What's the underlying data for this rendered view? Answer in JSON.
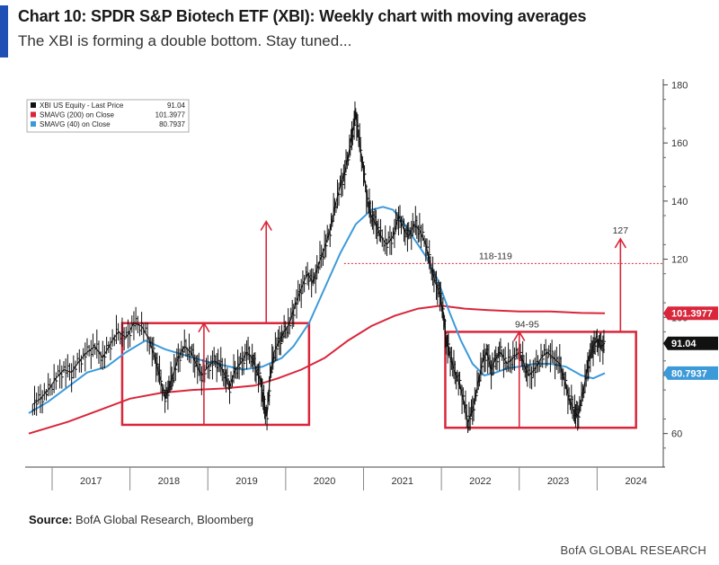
{
  "header": {
    "title": "Chart 10: SPDR S&P Biotech ETF (XBI): Weekly chart with moving averages",
    "subtitle": "The XBI is forming a double bottom. Stay tuned..."
  },
  "footer": {
    "source_label": "Source:",
    "source_text": " BofA Global Research, Bloomberg",
    "brand": "BofA GLOBAL RESEARCH"
  },
  "chart_data": {
    "type": "line",
    "xlabel": "",
    "ylabel": "",
    "x_ticks": [
      "2017",
      "2018",
      "2019",
      "2020",
      "2021",
      "2022",
      "2023",
      "2024"
    ],
    "x_range": [
      2016.7,
      2024.85
    ],
    "y_ticks": [
      60,
      80,
      100,
      120,
      140,
      160,
      180
    ],
    "ylim": [
      50,
      182
    ],
    "grid": false,
    "legend": {
      "placement": "top-left",
      "entries": [
        {
          "label": "XBI US Equity - Last Price",
          "value": "91.04",
          "color": "#111111"
        },
        {
          "label": "SMAVG (200)  on Close",
          "value": "101.3977",
          "color": "#d9263a"
        },
        {
          "label": "SMAVG (40)  on Close",
          "value": "80.7937",
          "color": "#3d9ad9"
        }
      ]
    },
    "last_value_labels": [
      {
        "text": "101.3977",
        "value": 101.3977,
        "color": "#d9263a"
      },
      {
        "text": "91.04",
        "value": 91.04,
        "color": "#111111"
      },
      {
        "text": "80.7937",
        "value": 80.7937,
        "color": "#3d9ad9"
      }
    ],
    "series": [
      {
        "name": "XBI US Equity - Last Price",
        "color": "#111111",
        "points": [
          [
            2016.75,
            70
          ],
          [
            2016.85,
            72
          ],
          [
            2016.95,
            75
          ],
          [
            2017.05,
            79
          ],
          [
            2017.15,
            82
          ],
          [
            2017.25,
            81
          ],
          [
            2017.35,
            85
          ],
          [
            2017.45,
            88
          ],
          [
            2017.55,
            90
          ],
          [
            2017.65,
            86
          ],
          [
            2017.75,
            91
          ],
          [
            2017.85,
            95
          ],
          [
            2017.95,
            93
          ],
          [
            2018.05,
            98
          ],
          [
            2018.15,
            97
          ],
          [
            2018.25,
            92
          ],
          [
            2018.32,
            86
          ],
          [
            2018.38,
            80
          ],
          [
            2018.45,
            72
          ],
          [
            2018.5,
            76
          ],
          [
            2018.55,
            80
          ],
          [
            2018.62,
            86
          ],
          [
            2018.7,
            90
          ],
          [
            2018.78,
            88
          ],
          [
            2018.85,
            84
          ],
          [
            2018.92,
            80
          ],
          [
            2019.0,
            83
          ],
          [
            2019.08,
            85
          ],
          [
            2019.15,
            84
          ],
          [
            2019.22,
            80
          ],
          [
            2019.28,
            76
          ],
          [
            2019.35,
            82
          ],
          [
            2019.42,
            84
          ],
          [
            2019.5,
            88
          ],
          [
            2019.57,
            86
          ],
          [
            2019.62,
            82
          ],
          [
            2019.68,
            78
          ],
          [
            2019.72,
            70
          ],
          [
            2019.76,
            66
          ],
          [
            2019.8,
            80
          ],
          [
            2019.85,
            88
          ],
          [
            2019.92,
            92
          ],
          [
            2019.98,
            95
          ],
          [
            2020.05,
            98
          ],
          [
            2020.12,
            104
          ],
          [
            2020.2,
            110
          ],
          [
            2020.28,
            115
          ],
          [
            2020.35,
            112
          ],
          [
            2020.42,
            118
          ],
          [
            2020.5,
            124
          ],
          [
            2020.57,
            130
          ],
          [
            2020.63,
            138
          ],
          [
            2020.7,
            145
          ],
          [
            2020.76,
            150
          ],
          [
            2020.82,
            158
          ],
          [
            2020.86,
            164
          ],
          [
            2020.9,
            170
          ],
          [
            2020.95,
            160
          ],
          [
            2021.0,
            150
          ],
          [
            2021.05,
            140
          ],
          [
            2021.1,
            135
          ],
          [
            2021.16,
            132
          ],
          [
            2021.22,
            128
          ],
          [
            2021.3,
            125
          ],
          [
            2021.38,
            128
          ],
          [
            2021.45,
            135
          ],
          [
            2021.52,
            130
          ],
          [
            2021.58,
            128
          ],
          [
            2021.65,
            132
          ],
          [
            2021.72,
            130
          ],
          [
            2021.8,
            125
          ],
          [
            2021.86,
            118
          ],
          [
            2021.92,
            112
          ],
          [
            2021.98,
            108
          ],
          [
            2022.02,
            102
          ],
          [
            2022.06,
            92
          ],
          [
            2022.1,
            88
          ],
          [
            2022.16,
            82
          ],
          [
            2022.22,
            78
          ],
          [
            2022.28,
            72
          ],
          [
            2022.34,
            64
          ],
          [
            2022.4,
            68
          ],
          [
            2022.46,
            76
          ],
          [
            2022.52,
            84
          ],
          [
            2022.58,
            88
          ],
          [
            2022.64,
            82
          ],
          [
            2022.7,
            86
          ],
          [
            2022.76,
            88
          ],
          [
            2022.84,
            84
          ],
          [
            2022.92,
            86
          ],
          [
            2023.0,
            88
          ],
          [
            2023.06,
            84
          ],
          [
            2023.12,
            80
          ],
          [
            2023.2,
            82
          ],
          [
            2023.28,
            86
          ],
          [
            2023.36,
            88
          ],
          [
            2023.44,
            86
          ],
          [
            2023.52,
            84
          ],
          [
            2023.58,
            78
          ],
          [
            2023.64,
            72
          ],
          [
            2023.7,
            68
          ],
          [
            2023.75,
            66
          ],
          [
            2023.8,
            72
          ],
          [
            2023.86,
            80
          ],
          [
            2023.9,
            86
          ],
          [
            2023.95,
            90
          ],
          [
            2024.0,
            92
          ],
          [
            2024.05,
            90
          ],
          [
            2024.1,
            91.04
          ]
        ]
      },
      {
        "name": "SMAVG (200)  on Close",
        "color": "#d9263a",
        "points": [
          [
            2016.7,
            60
          ],
          [
            2017.2,
            64
          ],
          [
            2017.6,
            68
          ],
          [
            2018.0,
            72
          ],
          [
            2018.4,
            74
          ],
          [
            2018.8,
            75
          ],
          [
            2019.2,
            75.5
          ],
          [
            2019.6,
            76.5
          ],
          [
            2019.9,
            79
          ],
          [
            2020.2,
            82
          ],
          [
            2020.5,
            86
          ],
          [
            2020.8,
            92
          ],
          [
            2021.1,
            97
          ],
          [
            2021.4,
            100.5
          ],
          [
            2021.7,
            103
          ],
          [
            2022.0,
            104
          ],
          [
            2022.3,
            103
          ],
          [
            2022.6,
            102.5
          ],
          [
            2023.0,
            102
          ],
          [
            2023.4,
            102
          ],
          [
            2023.8,
            101.5
          ],
          [
            2024.1,
            101.3977
          ]
        ]
      },
      {
        "name": "SMAVG (40)  on Close",
        "color": "#3d9ad9",
        "points": [
          [
            2016.7,
            67
          ],
          [
            2016.95,
            71
          ],
          [
            2017.2,
            76
          ],
          [
            2017.45,
            81
          ],
          [
            2017.7,
            83
          ],
          [
            2017.95,
            88
          ],
          [
            2018.2,
            92
          ],
          [
            2018.45,
            89
          ],
          [
            2018.7,
            87
          ],
          [
            2018.95,
            85
          ],
          [
            2019.2,
            83.5
          ],
          [
            2019.45,
            82
          ],
          [
            2019.7,
            83
          ],
          [
            2019.95,
            86
          ],
          [
            2020.1,
            90
          ],
          [
            2020.3,
            98
          ],
          [
            2020.5,
            110
          ],
          [
            2020.7,
            122
          ],
          [
            2020.9,
            132
          ],
          [
            2021.1,
            137
          ],
          [
            2021.25,
            138
          ],
          [
            2021.38,
            137
          ],
          [
            2021.5,
            133
          ],
          [
            2021.65,
            127
          ],
          [
            2021.8,
            121
          ],
          [
            2021.95,
            113
          ],
          [
            2022.1,
            102
          ],
          [
            2022.25,
            92
          ],
          [
            2022.4,
            84
          ],
          [
            2022.55,
            80
          ],
          [
            2022.7,
            81
          ],
          [
            2022.85,
            82.5
          ],
          [
            2023.0,
            83
          ],
          [
            2023.2,
            84
          ],
          [
            2023.4,
            84
          ],
          [
            2023.6,
            83
          ],
          [
            2023.8,
            80
          ],
          [
            2023.95,
            79
          ],
          [
            2024.1,
            80.7937
          ]
        ]
      }
    ],
    "annotations": {
      "hline": {
        "y": 118.5,
        "x_start": 2020.75,
        "label": "118-119"
      },
      "boxes": [
        {
          "x_start": 2017.9,
          "x_end": 2020.3,
          "y_low": 63,
          "y_high": 98
        },
        {
          "x_start": 2022.05,
          "x_end": 2024.5,
          "y_low": 62,
          "y_high": 95
        }
      ],
      "inner_arrows": [
        {
          "x": 2018.95,
          "y_from": 63,
          "y_to": 98
        },
        {
          "x": 2023.0,
          "y_from": 62,
          "y_to": 95
        }
      ],
      "target_arrows": [
        {
          "x": 2019.75,
          "y_from": 98,
          "y_to": 133
        },
        {
          "x": 2024.3,
          "y_from": 95,
          "y_to": 127,
          "label": "127"
        }
      ],
      "box_labels": [
        {
          "text": "94-95",
          "x": 2023.1,
          "y": 96.5
        }
      ]
    }
  }
}
